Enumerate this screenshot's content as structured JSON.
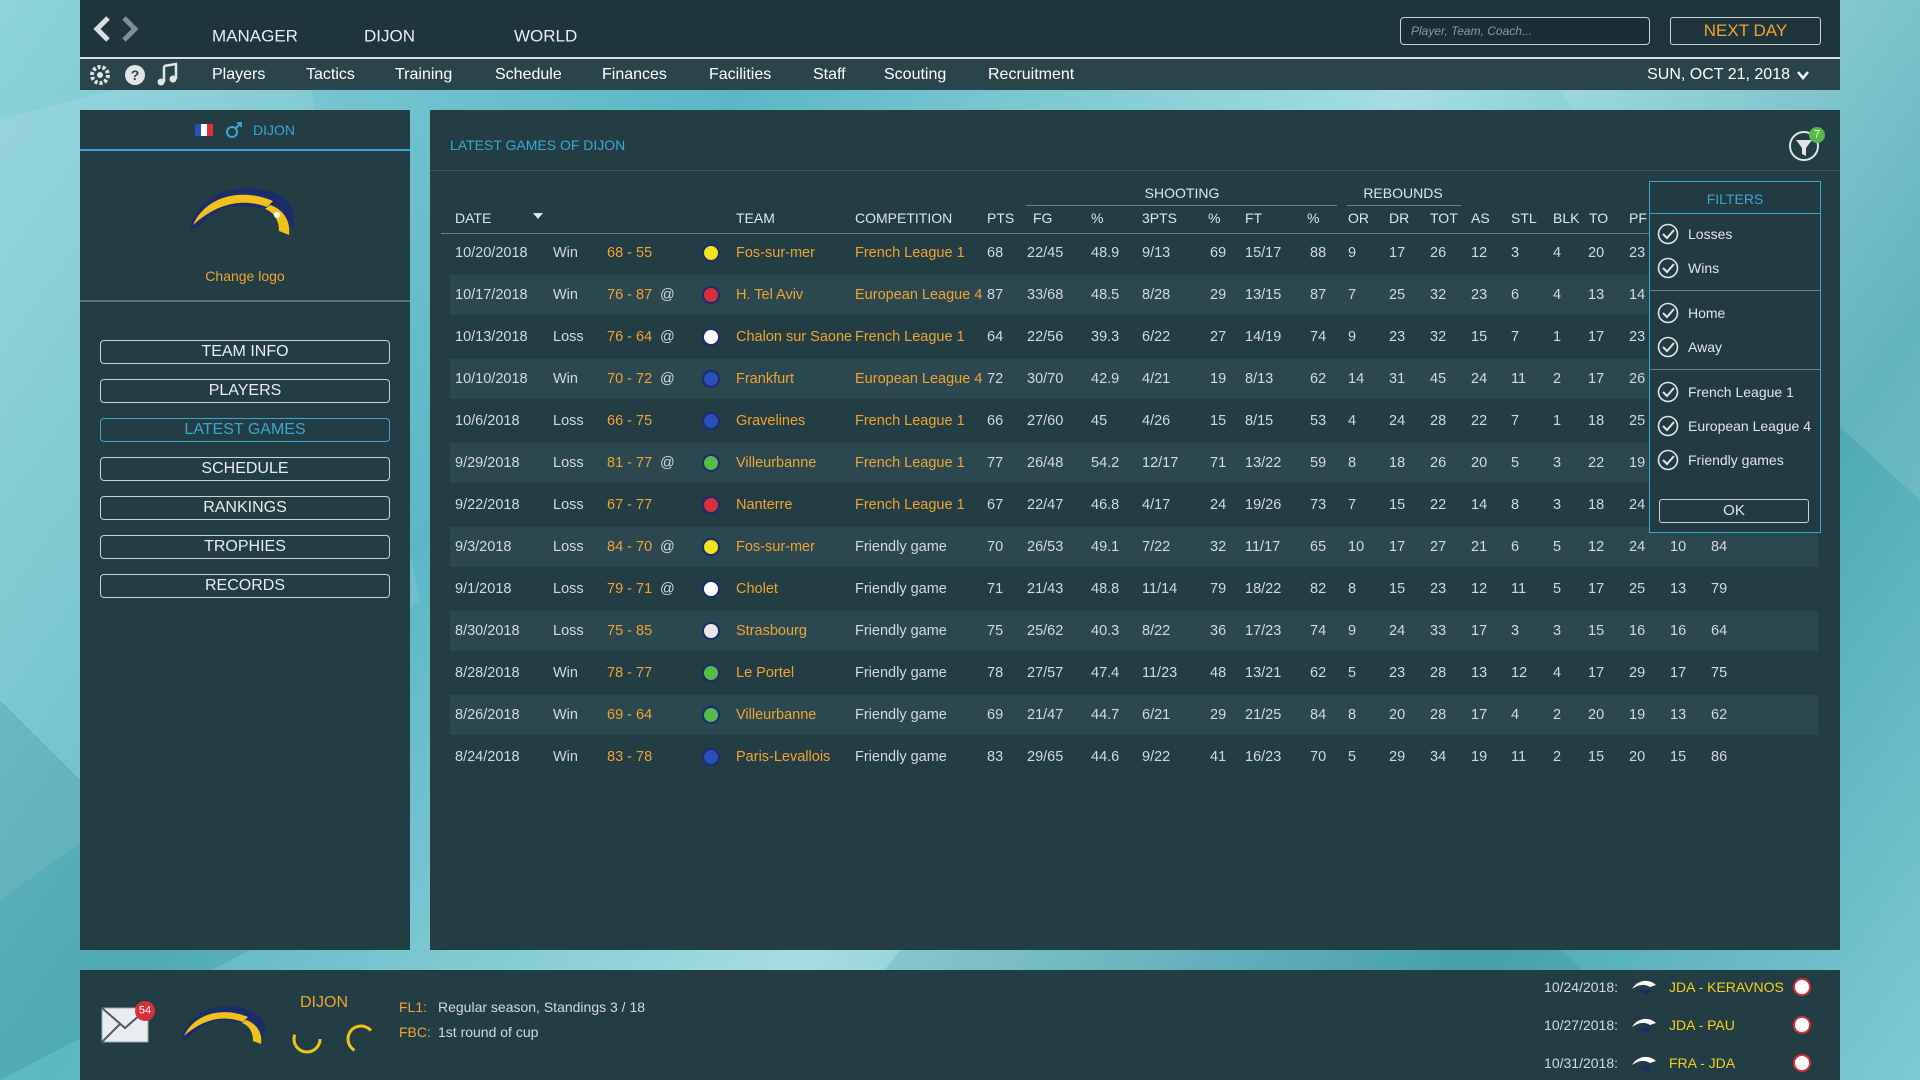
{
  "top_nav": {
    "items": [
      "MANAGER",
      "DIJON",
      "WORLD"
    ],
    "search_placeholder": "Player, Team, Coach...",
    "next_day": "NEXT DAY"
  },
  "menu": {
    "items": [
      "Players",
      "Tactics",
      "Training",
      "Schedule",
      "Finances",
      "Facilities",
      "Staff",
      "Scouting",
      "Recruitment"
    ],
    "date": "SUN, OCT 21, 2018"
  },
  "sidebar": {
    "team": "DIJON",
    "change_logo": "Change logo",
    "buttons": [
      "TEAM INFO",
      "PLAYERS",
      "LATEST GAMES",
      "SCHEDULE",
      "RANKINGS",
      "TROPHIES",
      "RECORDS"
    ]
  },
  "panel": {
    "title": "LATEST GAMES OF DIJON",
    "filter_count": "7",
    "group_headers": [
      "SHOOTING",
      "REBOUNDS"
    ],
    "columns": [
      "DATE",
      "TEAM",
      "COMPETITION",
      "PTS",
      "FG",
      "%",
      "3PTS",
      "%",
      "FT",
      "%",
      "OR",
      "DR",
      "TOT",
      "AS",
      "STL",
      "BLK",
      "TO",
      "PF"
    ],
    "rows": [
      [
        "10/20/2018",
        "Win",
        "68 - 55",
        null,
        "Fos-sur-mer",
        "French League 1",
        "68",
        "22/45",
        "48.9",
        "9/13",
        "69",
        "15/17",
        "88",
        "9",
        "17",
        "26",
        "12",
        "3",
        "4",
        "20",
        "23",
        null,
        null
      ],
      [
        "10/17/2018",
        "Win",
        "76 - 87",
        "@",
        "H. Tel Aviv",
        "European League 4",
        "87",
        "33/68",
        "48.5",
        "8/28",
        "29",
        "13/15",
        "87",
        "7",
        "25",
        "32",
        "23",
        "6",
        "4",
        "13",
        "14",
        null,
        null
      ],
      [
        "10/13/2018",
        "Loss",
        "76 - 64",
        "@",
        "Chalon sur Saone",
        "French League 1",
        "64",
        "22/56",
        "39.3",
        "6/22",
        "27",
        "14/19",
        "74",
        "9",
        "23",
        "32",
        "15",
        "7",
        "1",
        "17",
        "23",
        null,
        null
      ],
      [
        "10/10/2018",
        "Win",
        "70 - 72",
        "@",
        "Frankfurt",
        "European League 4",
        "72",
        "30/70",
        "42.9",
        "4/21",
        "19",
        "8/13",
        "62",
        "14",
        "31",
        "45",
        "24",
        "11",
        "2",
        "17",
        "26",
        null,
        null
      ],
      [
        "10/6/2018",
        "Loss",
        "66 - 75",
        null,
        "Gravelines",
        "French League 1",
        "66",
        "27/60",
        "45",
        "4/26",
        "15",
        "8/15",
        "53",
        "4",
        "24",
        "28",
        "22",
        "7",
        "1",
        "18",
        "25",
        null,
        null
      ],
      [
        "9/29/2018",
        "Loss",
        "81 - 77",
        "@",
        "Villeurbanne",
        "French League 1",
        "77",
        "26/48",
        "54.2",
        "12/17",
        "71",
        "13/22",
        "59",
        "8",
        "18",
        "26",
        "20",
        "5",
        "3",
        "22",
        "19",
        null,
        null
      ],
      [
        "9/22/2018",
        "Loss",
        "67 - 77",
        null,
        "Nanterre",
        "French League 1",
        "67",
        "22/47",
        "46.8",
        "4/17",
        "24",
        "19/26",
        "73",
        "7",
        "15",
        "22",
        "14",
        "8",
        "3",
        "18",
        "24",
        null,
        null
      ],
      [
        "9/3/2018",
        "Loss",
        "84 - 70",
        "@",
        "Fos-sur-mer",
        "Friendly game",
        "70",
        "26/53",
        "49.1",
        "7/22",
        "32",
        "11/17",
        "65",
        "10",
        "17",
        "27",
        "21",
        "6",
        "5",
        "12",
        "24",
        "10",
        "84"
      ],
      [
        "9/1/2018",
        "Loss",
        "79 - 71",
        "@",
        "Cholet",
        "Friendly game",
        "71",
        "21/43",
        "48.8",
        "11/14",
        "79",
        "18/22",
        "82",
        "8",
        "15",
        "23",
        "12",
        "11",
        "5",
        "17",
        "25",
        "13",
        "79"
      ],
      [
        "8/30/2018",
        "Loss",
        "75 - 85",
        null,
        "Strasbourg",
        "Friendly game",
        "75",
        "25/62",
        "40.3",
        "8/22",
        "36",
        "17/23",
        "74",
        "9",
        "24",
        "33",
        "17",
        "3",
        "3",
        "15",
        "16",
        "16",
        "64"
      ],
      [
        "8/28/2018",
        "Win",
        "78 - 77",
        null,
        "Le Portel",
        "Friendly game",
        "78",
        "27/57",
        "47.4",
        "11/23",
        "48",
        "13/21",
        "62",
        "5",
        "23",
        "28",
        "13",
        "12",
        "4",
        "17",
        "29",
        "17",
        "75"
      ],
      [
        "8/26/2018",
        "Win",
        "69 - 64",
        null,
        "Villeurbanne",
        "Friendly game",
        "69",
        "21/47",
        "44.7",
        "6/21",
        "29",
        "21/25",
        "84",
        "8",
        "20",
        "28",
        "17",
        "4",
        "2",
        "20",
        "19",
        "13",
        "62"
      ],
      [
        "8/24/2018",
        "Win",
        "83 - 78",
        null,
        "Paris-Levallois",
        "Friendly game",
        "83",
        "29/65",
        "44.6",
        "9/22",
        "41",
        "16/23",
        "70",
        "5",
        "29",
        "34",
        "19",
        "11",
        "2",
        "15",
        "20",
        "15",
        "86"
      ]
    ]
  },
  "filters": {
    "title": "FILTERS",
    "groups": [
      [
        "Losses",
        "Wins"
      ],
      [
        "Home",
        "Away"
      ],
      [
        "French League 1",
        "European League 4",
        "Friendly games"
      ]
    ],
    "ok": "OK"
  },
  "footer": {
    "mail_count": "54",
    "team": "DIJON",
    "competitions": [
      {
        "code": "FL1:",
        "status": "Regular season, Standings 3 / 18"
      },
      {
        "code": "FBC:",
        "status": "1st round of cup"
      }
    ],
    "upcoming": [
      {
        "date": "10/24/2018:",
        "match": "JDA - KERAVNOS"
      },
      {
        "date": "10/27/2018:",
        "match": "JDA - PAU"
      },
      {
        "date": "10/31/2018:",
        "match": "FRA - JDA"
      }
    ]
  }
}
